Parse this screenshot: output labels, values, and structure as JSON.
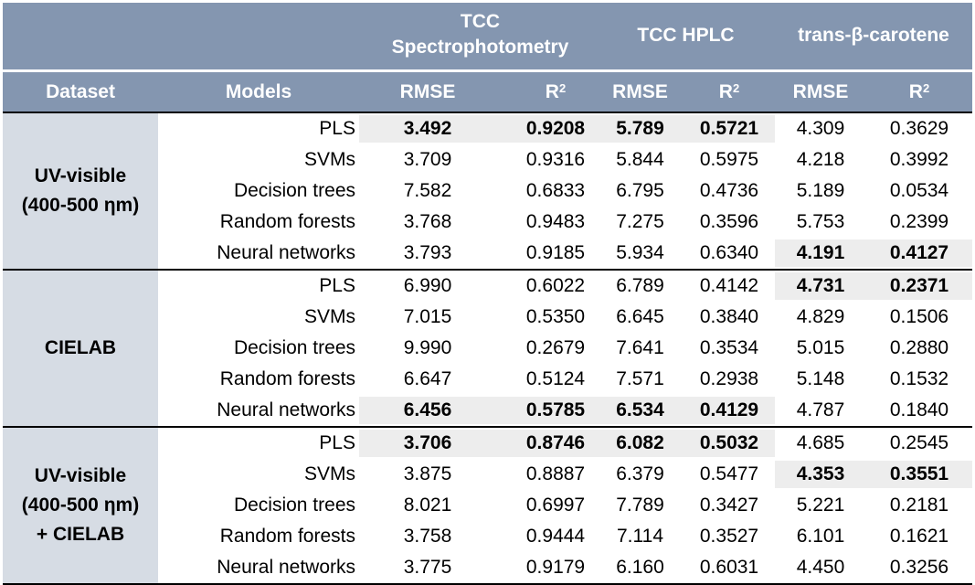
{
  "header": {
    "groups": [
      "TCC Spectrophotometry",
      "TCC HPLC",
      "trans-β-carotene"
    ],
    "group_lines": [
      [
        "TCC",
        "Spectrophotometry"
      ],
      [
        "TCC HPLC"
      ],
      [
        "trans-β-carotene"
      ]
    ],
    "dataset": "Dataset",
    "models": "Models",
    "rmse": "RMSE",
    "r2_base": "R",
    "r2_sup": "2"
  },
  "datasets": [
    {
      "label_lines": [
        "UV-visible",
        "(400-500 ηm)"
      ],
      "rows": [
        {
          "model": "PLS",
          "v": [
            "3.492",
            "0.9208",
            "5.789",
            "0.5721",
            "4.309",
            "0.3629"
          ],
          "bold": [
            true,
            true,
            true,
            true,
            false,
            false
          ]
        },
        {
          "model": "SVMs",
          "v": [
            "3.709",
            "0.9316",
            "5.844",
            "0.5975",
            "4.218",
            "0.3992"
          ],
          "bold": [
            false,
            false,
            false,
            false,
            false,
            false
          ]
        },
        {
          "model": "Decision trees",
          "v": [
            "7.582",
            "0.6833",
            "6.795",
            "0.4736",
            "5.189",
            "0.0534"
          ],
          "bold": [
            false,
            false,
            false,
            false,
            false,
            false
          ]
        },
        {
          "model": "Random forests",
          "v": [
            "3.768",
            "0.9483",
            "7.275",
            "0.3596",
            "5.753",
            "0.2399"
          ],
          "bold": [
            false,
            false,
            false,
            false,
            false,
            false
          ]
        },
        {
          "model": "Neural networks",
          "v": [
            "3.793",
            "0.9185",
            "5.934",
            "0.6340",
            "4.191",
            "0.4127"
          ],
          "bold": [
            false,
            false,
            false,
            false,
            true,
            true
          ]
        }
      ]
    },
    {
      "label_lines": [
        "CIELAB"
      ],
      "rows": [
        {
          "model": "PLS",
          "v": [
            "6.990",
            "0.6022",
            "6.789",
            "0.4142",
            "4.731",
            "0.2371"
          ],
          "bold": [
            false,
            false,
            false,
            false,
            true,
            true
          ]
        },
        {
          "model": "SVMs",
          "v": [
            "7.015",
            "0.5350",
            "6.645",
            "0.3840",
            "4.829",
            "0.1506"
          ],
          "bold": [
            false,
            false,
            false,
            false,
            false,
            false
          ]
        },
        {
          "model": "Decision trees",
          "v": [
            "9.990",
            "0.2679",
            "7.641",
            "0.3534",
            "5.015",
            "0.2880"
          ],
          "bold": [
            false,
            false,
            false,
            false,
            false,
            false
          ]
        },
        {
          "model": "Random forests",
          "v": [
            "6.647",
            "0.5124",
            "7.571",
            "0.2938",
            "5.148",
            "0.1532"
          ],
          "bold": [
            false,
            false,
            false,
            false,
            false,
            false
          ]
        },
        {
          "model": "Neural networks",
          "v": [
            "6.456",
            "0.5785",
            "6.534",
            "0.4129",
            "4.787",
            "0.1840"
          ],
          "bold": [
            true,
            true,
            true,
            true,
            false,
            false
          ]
        }
      ]
    },
    {
      "label_lines": [
        "UV-visible",
        "(400-500 ηm)",
        "+ CIELAB"
      ],
      "rows": [
        {
          "model": "PLS",
          "v": [
            "3.706",
            "0.8746",
            "6.082",
            "0.5032",
            "4.685",
            "0.2545"
          ],
          "bold": [
            true,
            true,
            true,
            true,
            false,
            false
          ]
        },
        {
          "model": "SVMs",
          "v": [
            "3.875",
            "0.8887",
            "6.379",
            "0.5477",
            "4.353",
            "0.3551"
          ],
          "bold": [
            false,
            false,
            false,
            false,
            true,
            true
          ]
        },
        {
          "model": "Decision trees",
          "v": [
            "8.021",
            "0.6997",
            "7.789",
            "0.3427",
            "5.221",
            "0.2181"
          ],
          "bold": [
            false,
            false,
            false,
            false,
            false,
            false
          ]
        },
        {
          "model": "Random forests",
          "v": [
            "3.758",
            "0.9444",
            "7.114",
            "0.3527",
            "6.101",
            "0.1621"
          ],
          "bold": [
            false,
            false,
            false,
            false,
            false,
            false
          ]
        },
        {
          "model": "Neural networks",
          "v": [
            "3.775",
            "0.9179",
            "6.160",
            "0.6031",
            "4.450",
            "0.3256"
          ],
          "bold": [
            false,
            false,
            false,
            false,
            false,
            false
          ]
        }
      ]
    }
  ],
  "colors": {
    "header_bg": "#8496b0",
    "dataset_bg": "#d6dce4",
    "highlight_bg": "#ededed",
    "header_text": "#ffffff",
    "rule": "#000000"
  }
}
